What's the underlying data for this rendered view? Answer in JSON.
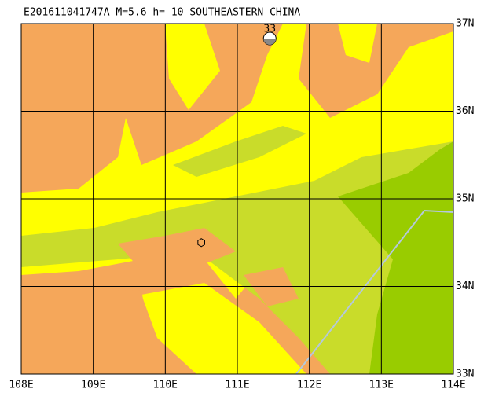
{
  "title": "E201611041747A M=5.6 h= 10 SOUTHEASTERN CHINA",
  "map": {
    "lonlim": [
      108,
      114
    ],
    "latlim": [
      33,
      37
    ],
    "lonticks": [
      {
        "value": 108,
        "label": "108E"
      },
      {
        "value": 109,
        "label": "109E"
      },
      {
        "value": 110,
        "label": "110E"
      },
      {
        "value": 111,
        "label": "111E"
      },
      {
        "value": 112,
        "label": "112E"
      },
      {
        "value": 113,
        "label": "113E"
      },
      {
        "value": 114,
        "label": "114E"
      }
    ],
    "latticks": [
      {
        "value": 33,
        "label": "33N"
      },
      {
        "value": 34,
        "label": "34N"
      },
      {
        "value": 35,
        "label": "35N"
      },
      {
        "value": 36,
        "label": "36N"
      },
      {
        "value": 37,
        "label": "37N"
      }
    ],
    "epicenter": {
      "lon": 110.5,
      "lat": 34.5
    },
    "stations": [
      {
        "label": "33",
        "lon": 111.45,
        "lat": 36.83
      }
    ]
  }
}
